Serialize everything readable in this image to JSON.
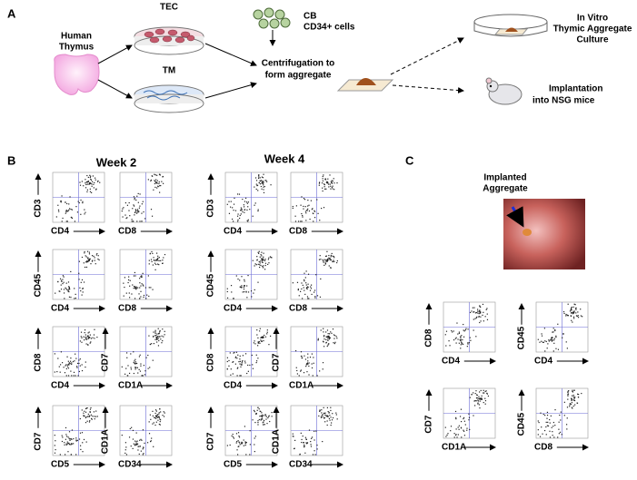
{
  "panel_a": {
    "label": "A",
    "human_thymus": [
      "Human",
      "Thymus"
    ],
    "tec": "TEC",
    "tm": "TM",
    "cb": [
      "CB",
      "CD34+ cells"
    ],
    "centrifugation": [
      "Centrifugation to",
      "form aggregate"
    ],
    "culture": [
      "In Vitro",
      "Thymic Aggregate",
      "Culture"
    ],
    "implantation": [
      "Implantation",
      "into NSG mice"
    ]
  },
  "panel_b": {
    "label": "B",
    "weeks": [
      {
        "title": "Week 2",
        "plots": [
          {
            "y": "CD3",
            "x": "CD4"
          },
          {
            "x": "CD8"
          },
          {
            "y": "CD45",
            "x": "CD4"
          },
          {
            "x": "CD8"
          },
          {
            "y": "CD8",
            "x": "CD4"
          },
          {
            "y": "CD7",
            "x": "CD1A"
          },
          {
            "y": "CD7",
            "x": "CD5"
          },
          {
            "y": "CD1A",
            "x": "CD34"
          }
        ]
      },
      {
        "title": "Week 4",
        "plots": [
          {
            "y": "CD3",
            "x": "CD4"
          },
          {
            "x": "CD8"
          },
          {
            "y": "CD45",
            "x": "CD4"
          },
          {
            "x": "CD8"
          },
          {
            "y": "CD8",
            "x": "CD4"
          },
          {
            "y": "CD7",
            "x": "CD1A"
          },
          {
            "y": "CD7",
            "x": "CD5"
          },
          {
            "y": "CD1A",
            "x": "CD34"
          }
        ]
      }
    ]
  },
  "panel_c": {
    "label": "C",
    "photo_title": [
      "Implanted",
      "Aggregate"
    ],
    "plots": [
      {
        "y": "CD8",
        "x": "CD4"
      },
      {
        "y": "CD45",
        "x": "CD4"
      },
      {
        "y": "CD7",
        "x": "CD1A"
      },
      {
        "y": "CD45",
        "x": "CD8"
      }
    ]
  }
}
